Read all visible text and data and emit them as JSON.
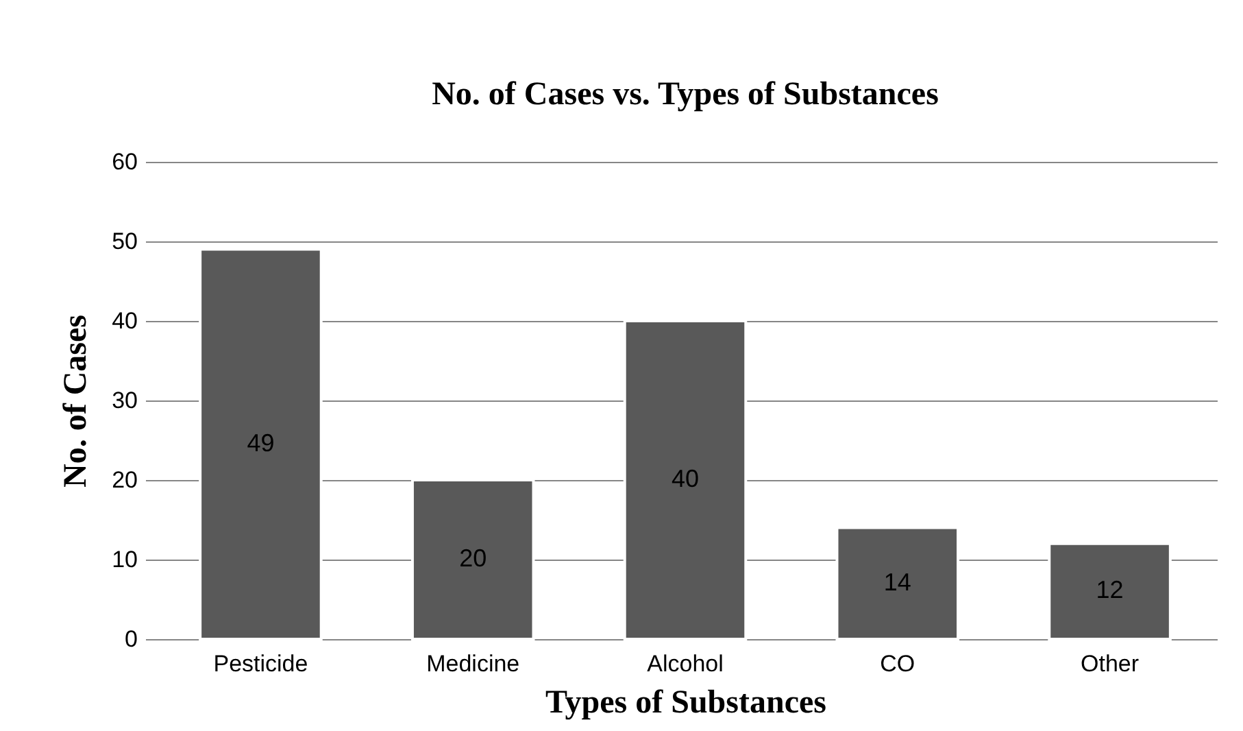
{
  "chart_data": {
    "type": "bar",
    "title": "No. of Cases vs. Types of Substances",
    "xlabel": "Types of Substances",
    "ylabel": "No. of Cases",
    "categories": [
      "Pesticide",
      "Medicine",
      "Alcohol",
      "CO",
      "Other"
    ],
    "values": [
      49,
      20,
      40,
      14,
      12
    ],
    "color": "#595959",
    "ylim": [
      0,
      60
    ],
    "yticks": [
      0,
      10,
      20,
      30,
      40,
      50,
      60
    ],
    "grid": "y",
    "data_labels": true
  }
}
